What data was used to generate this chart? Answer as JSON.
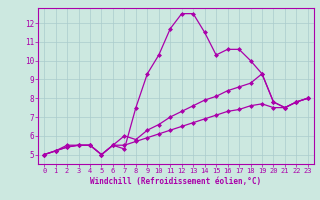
{
  "background_color": "#cce8e0",
  "grid_color": "#aacccc",
  "line_color": "#aa00aa",
  "marker": "D",
  "markersize": 2.0,
  "linewidth": 0.9,
  "xlabel": "Windchill (Refroidissement éolien,°C)",
  "xlabel_fontsize": 5.5,
  "tick_fontsize": 5.0,
  "ytick_fontsize": 5.5,
  "ylabel_ticks": [
    5,
    6,
    7,
    8,
    9,
    10,
    11,
    12
  ],
  "xtick_labels": [
    "0",
    "1",
    "2",
    "3",
    "4",
    "5",
    "6",
    "7",
    "8",
    "9",
    "10",
    "11",
    "12",
    "13",
    "14",
    "15",
    "16",
    "17",
    "18",
    "19",
    "20",
    "21",
    "22",
    "23"
  ],
  "ylim": [
    4.5,
    12.8
  ],
  "xlim": [
    -0.5,
    23.5
  ],
  "series1_x": [
    0,
    1,
    2,
    3,
    4,
    5,
    6,
    7,
    8,
    9,
    10,
    11,
    12,
    13,
    14,
    15,
    16,
    17,
    18,
    19,
    20,
    21,
    22,
    23
  ],
  "series1_y": [
    5.0,
    5.2,
    5.5,
    5.5,
    5.5,
    5.0,
    5.5,
    5.3,
    7.5,
    9.3,
    10.3,
    11.7,
    12.5,
    12.5,
    11.5,
    10.3,
    10.6,
    10.6,
    10.0,
    9.3,
    7.8,
    7.5,
    7.8,
    8.0
  ],
  "series2_x": [
    0,
    1,
    2,
    3,
    4,
    5,
    6,
    7,
    8,
    9,
    10,
    11,
    12,
    13,
    14,
    15,
    16,
    17,
    18,
    19,
    20,
    21,
    22,
    23
  ],
  "series2_y": [
    5.0,
    5.2,
    5.4,
    5.5,
    5.5,
    5.0,
    5.5,
    6.0,
    5.8,
    6.3,
    6.6,
    7.0,
    7.3,
    7.6,
    7.9,
    8.1,
    8.4,
    8.6,
    8.8,
    9.3,
    7.8,
    7.5,
    7.8,
    8.0
  ],
  "series3_x": [
    0,
    1,
    2,
    3,
    4,
    5,
    6,
    7,
    8,
    9,
    10,
    11,
    12,
    13,
    14,
    15,
    16,
    17,
    18,
    19,
    20,
    21,
    22,
    23
  ],
  "series3_y": [
    5.0,
    5.2,
    5.4,
    5.5,
    5.5,
    5.0,
    5.5,
    5.5,
    5.7,
    5.9,
    6.1,
    6.3,
    6.5,
    6.7,
    6.9,
    7.1,
    7.3,
    7.4,
    7.6,
    7.7,
    7.5,
    7.5,
    7.8,
    8.0
  ]
}
